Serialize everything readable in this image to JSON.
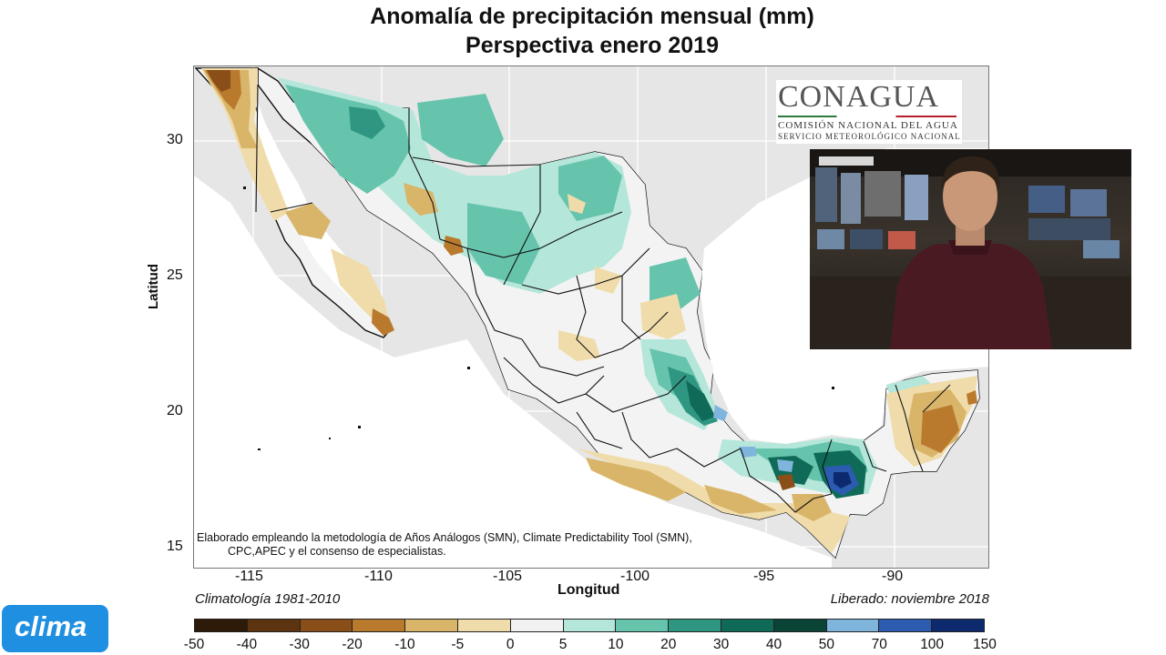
{
  "title": {
    "line1": "Anomalía de precipitación mensual (mm)",
    "line2": "Perspectiva enero 2019"
  },
  "axes": {
    "ylabel": "Latitud",
    "xlabel": "Longitud",
    "lat_ticks": [
      "30",
      "25",
      "20",
      "15"
    ],
    "lon_ticks": [
      "-115",
      "-110",
      "-105",
      "-100",
      "-95",
      "-90"
    ],
    "lat_range": [
      14.2,
      32.8
    ],
    "lon_range": [
      -117.3,
      -86.3
    ],
    "grid": true
  },
  "note": {
    "line1": "Elaborado empleando la metodología de Años Análogos (SMN), Climate Predictability Tool (SMN),",
    "line2": "CPC,APEC y el consenso de especialistas."
  },
  "footer": {
    "left": "Climatología 1981-2010",
    "right": "Liberado: noviembre 2018"
  },
  "logo": {
    "name": "CONAGUA",
    "sub1": "COMISIÓN NACIONAL DEL AGUA",
    "sub2": "SERVICIO METEOROLÓGICO NACIONAL"
  },
  "colorbar": {
    "labels": [
      "-50",
      "-40",
      "-30",
      "-20",
      "-10",
      "-5",
      "0",
      "5",
      "10",
      "20",
      "30",
      "40",
      "50",
      "70",
      "100",
      "150"
    ],
    "colors": [
      "#2e1a08",
      "#5c3410",
      "#8a4f18",
      "#b97a2e",
      "#d9b56a",
      "#f0dcaa",
      "#f2f2f2",
      "#b5e6da",
      "#66c4ad",
      "#2f9681",
      "#0f6b57",
      "#0a4436",
      "#7fb5dd",
      "#2b5cb0",
      "#0d2a6e"
    ]
  },
  "brand": {
    "clima": "clima"
  },
  "video": {
    "description": "presenter-video-overlay"
  }
}
